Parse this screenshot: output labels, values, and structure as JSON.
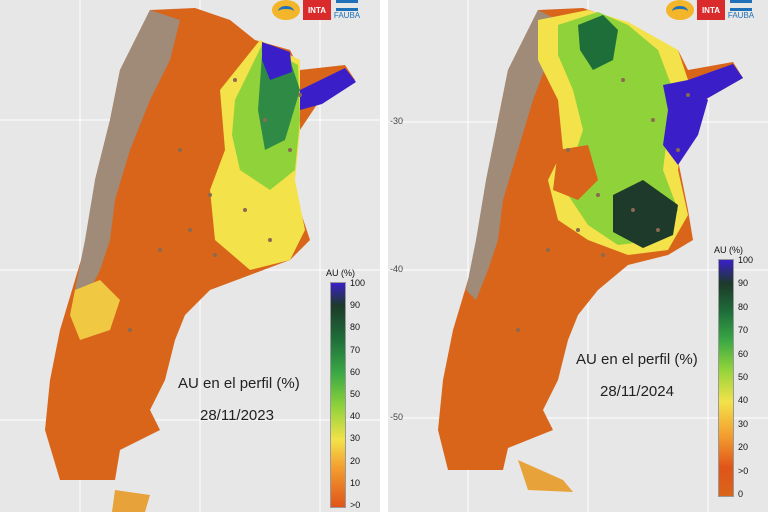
{
  "left": {
    "caption_title": "AU en el perfil (%)",
    "caption_date": "28/11/2023",
    "legend_title": "AU (%)",
    "legend_ticks": [
      "100",
      "90",
      "80",
      "70",
      "60",
      "50",
      "40",
      "30",
      "20",
      "10",
      ">0"
    ]
  },
  "right": {
    "caption_title": "AU en el perfil (%)",
    "caption_date": "28/11/2024",
    "legend_title": "AU (%)",
    "legend_ticks": [
      "100",
      "90",
      "80",
      "70",
      "60",
      "50",
      "40",
      "30",
      "20",
      ">0",
      "0"
    ],
    "lat_labels": [
      "-30",
      "-40",
      "-50"
    ]
  },
  "logos": {
    "inta": "INTA",
    "fauba": "FAUBA"
  },
  "colors": {
    "background": "#e7e7e7",
    "dry": "#d9651a",
    "mountain": "#a08a78",
    "moist": "#8fd23a",
    "wet": "#1e6e3a",
    "saturated": "#3a1fc8"
  }
}
